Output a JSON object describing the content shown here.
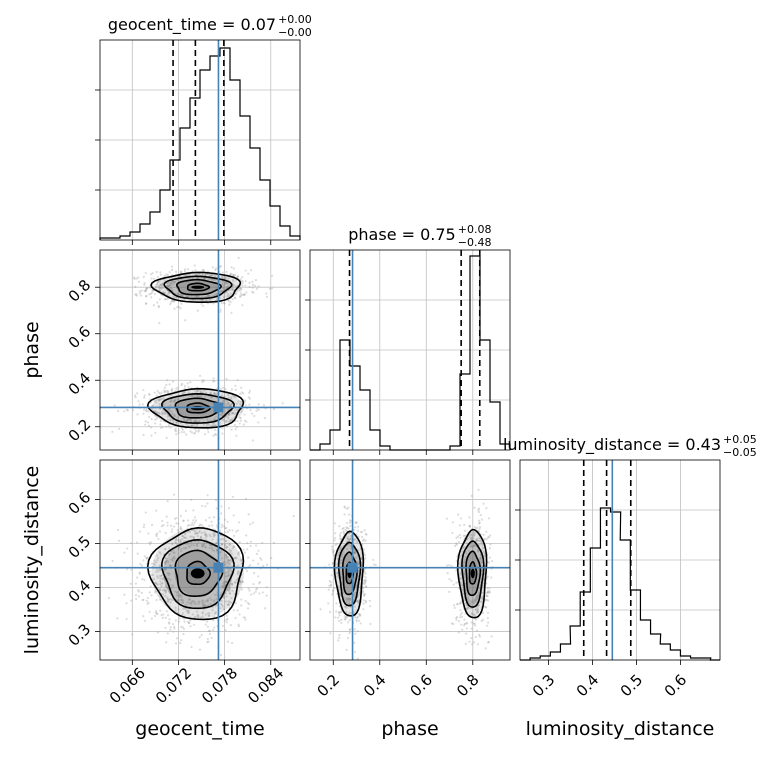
{
  "chart_data": {
    "type": "corner",
    "parameters": [
      "geocent_time",
      "phase",
      "luminosity_distance"
    ],
    "truths": {
      "geocent_time": 0.0772,
      "phase": 0.283,
      "luminosity_distance": 0.445
    },
    "colors": {
      "truth": "#4682b4",
      "grid": "#c0c0c0",
      "hist": "#000000",
      "quantile": "#000000",
      "samples": "#9a9a9a",
      "contour_fill": "#6e6e6e",
      "frame": "#000000"
    },
    "grid": true,
    "axes": {
      "geocent_time": {
        "range": [
          0.0618,
          0.0878
        ],
        "ticks": [
          0.066,
          0.072,
          0.078,
          0.084
        ],
        "tick_labels": [
          "0.066",
          "0.072",
          "0.078",
          "0.084"
        ],
        "label": "geocent_time"
      },
      "phase": {
        "range": [
          0.1,
          0.96
        ],
        "ticks": [
          0.2,
          0.4,
          0.6,
          0.8
        ],
        "tick_labels": [
          "0.2",
          "0.4",
          "0.6",
          "0.8"
        ],
        "label": "phase"
      },
      "luminosity_distance": {
        "range": [
          0.235,
          0.69
        ],
        "ticks": [
          0.3,
          0.4,
          0.5,
          0.6
        ],
        "tick_labels": [
          "0.3",
          "0.4",
          "0.5",
          "0.6"
        ],
        "label": "luminosity_distance"
      }
    },
    "titles": [
      {
        "param": "geocent_time",
        "text": "geocent_time = 0.07",
        "sup": "+0.00",
        "sub": "−0.00"
      },
      {
        "param": "phase",
        "text": "phase = 0.75",
        "sup": "+0.08",
        "sub": "−0.48"
      },
      {
        "param": "luminosity_distance",
        "text": "luminosity_distance = 0.43",
        "sup": "+0.05",
        "sub": "−0.05"
      }
    ],
    "histograms": [
      {
        "param": "geocent_time",
        "quantiles": [
          0.0713,
          0.0742,
          0.0779
        ],
        "bins": [
          {
            "x": 0.0618,
            "y": 0.01
          },
          {
            "x": 0.0631,
            "y": 0.01
          },
          {
            "x": 0.0644,
            "y": 0.02
          },
          {
            "x": 0.0657,
            "y": 0.04
          },
          {
            "x": 0.067,
            "y": 0.08
          },
          {
            "x": 0.0683,
            "y": 0.14
          },
          {
            "x": 0.0696,
            "y": 0.25
          },
          {
            "x": 0.0709,
            "y": 0.4
          },
          {
            "x": 0.0722,
            "y": 0.56
          },
          {
            "x": 0.0735,
            "y": 0.71
          },
          {
            "x": 0.0748,
            "y": 0.85
          },
          {
            "x": 0.0761,
            "y": 0.92
          },
          {
            "x": 0.0774,
            "y": 0.96
          },
          {
            "x": 0.0787,
            "y": 0.8
          },
          {
            "x": 0.08,
            "y": 0.62
          },
          {
            "x": 0.0813,
            "y": 0.46
          },
          {
            "x": 0.0826,
            "y": 0.3
          },
          {
            "x": 0.0839,
            "y": 0.17
          },
          {
            "x": 0.0852,
            "y": 0.07
          },
          {
            "x": 0.0865,
            "y": 0.02
          }
        ]
      },
      {
        "param": "phase",
        "quantiles": [
          0.27,
          0.75,
          0.83
        ],
        "bins": [
          {
            "x": 0.1,
            "y": 0.0
          },
          {
            "x": 0.143,
            "y": 0.03
          },
          {
            "x": 0.186,
            "y": 0.1
          },
          {
            "x": 0.229,
            "y": 0.55
          },
          {
            "x": 0.272,
            "y": 0.42
          },
          {
            "x": 0.315,
            "y": 0.3
          },
          {
            "x": 0.358,
            "y": 0.1
          },
          {
            "x": 0.401,
            "y": 0.02
          },
          {
            "x": 0.444,
            "y": 0.0
          },
          {
            "x": 0.487,
            "y": 0.0
          },
          {
            "x": 0.53,
            "y": 0.0
          },
          {
            "x": 0.573,
            "y": 0.0
          },
          {
            "x": 0.616,
            "y": 0.0
          },
          {
            "x": 0.659,
            "y": 0.0
          },
          {
            "x": 0.702,
            "y": 0.02
          },
          {
            "x": 0.745,
            "y": 0.38
          },
          {
            "x": 0.788,
            "y": 0.97
          },
          {
            "x": 0.831,
            "y": 0.55
          },
          {
            "x": 0.874,
            "y": 0.24
          },
          {
            "x": 0.917,
            "y": 0.03
          }
        ]
      },
      {
        "param": "luminosity_distance",
        "quantiles": [
          0.38,
          0.432,
          0.487
        ],
        "bins": [
          {
            "x": 0.235,
            "y": 0.0
          },
          {
            "x": 0.258,
            "y": 0.01
          },
          {
            "x": 0.281,
            "y": 0.02
          },
          {
            "x": 0.304,
            "y": 0.04
          },
          {
            "x": 0.327,
            "y": 0.08
          },
          {
            "x": 0.349,
            "y": 0.17
          },
          {
            "x": 0.372,
            "y": 0.34
          },
          {
            "x": 0.395,
            "y": 0.56
          },
          {
            "x": 0.418,
            "y": 0.76
          },
          {
            "x": 0.441,
            "y": 0.74
          },
          {
            "x": 0.463,
            "y": 0.6
          },
          {
            "x": 0.486,
            "y": 0.35
          },
          {
            "x": 0.509,
            "y": 0.2
          },
          {
            "x": 0.532,
            "y": 0.13
          },
          {
            "x": 0.554,
            "y": 0.08
          },
          {
            "x": 0.577,
            "y": 0.05
          },
          {
            "x": 0.6,
            "y": 0.02
          },
          {
            "x": 0.623,
            "y": 0.01
          },
          {
            "x": 0.646,
            "y": 0.01
          },
          {
            "x": 0.668,
            "y": 0.0
          }
        ]
      }
    ],
    "contour_panels": [
      {
        "x": "geocent_time",
        "y": "phase",
        "modes": [
          {
            "cx": 0.0745,
            "cy": 0.8,
            "sx": 0.0028,
            "sy": 0.032,
            "n": 900
          },
          {
            "cx": 0.0745,
            "cy": 0.28,
            "sx": 0.003,
            "sy": 0.042,
            "n": 900
          }
        ]
      },
      {
        "x": "geocent_time",
        "y": "luminosity_distance",
        "modes": [
          {
            "cx": 0.0745,
            "cy": 0.432,
            "sx": 0.003,
            "sy": 0.052,
            "n": 1500
          }
        ]
      },
      {
        "x": "phase",
        "y": "luminosity_distance",
        "modes": [
          {
            "cx": 0.27,
            "cy": 0.432,
            "sx": 0.03,
            "sy": 0.048,
            "n": 800
          },
          {
            "cx": 0.8,
            "cy": 0.432,
            "sx": 0.03,
            "sy": 0.05,
            "n": 800
          }
        ]
      }
    ],
    "contour_levels_sigma": [
      0.5,
      1.0,
      1.5,
      2.0
    ]
  }
}
